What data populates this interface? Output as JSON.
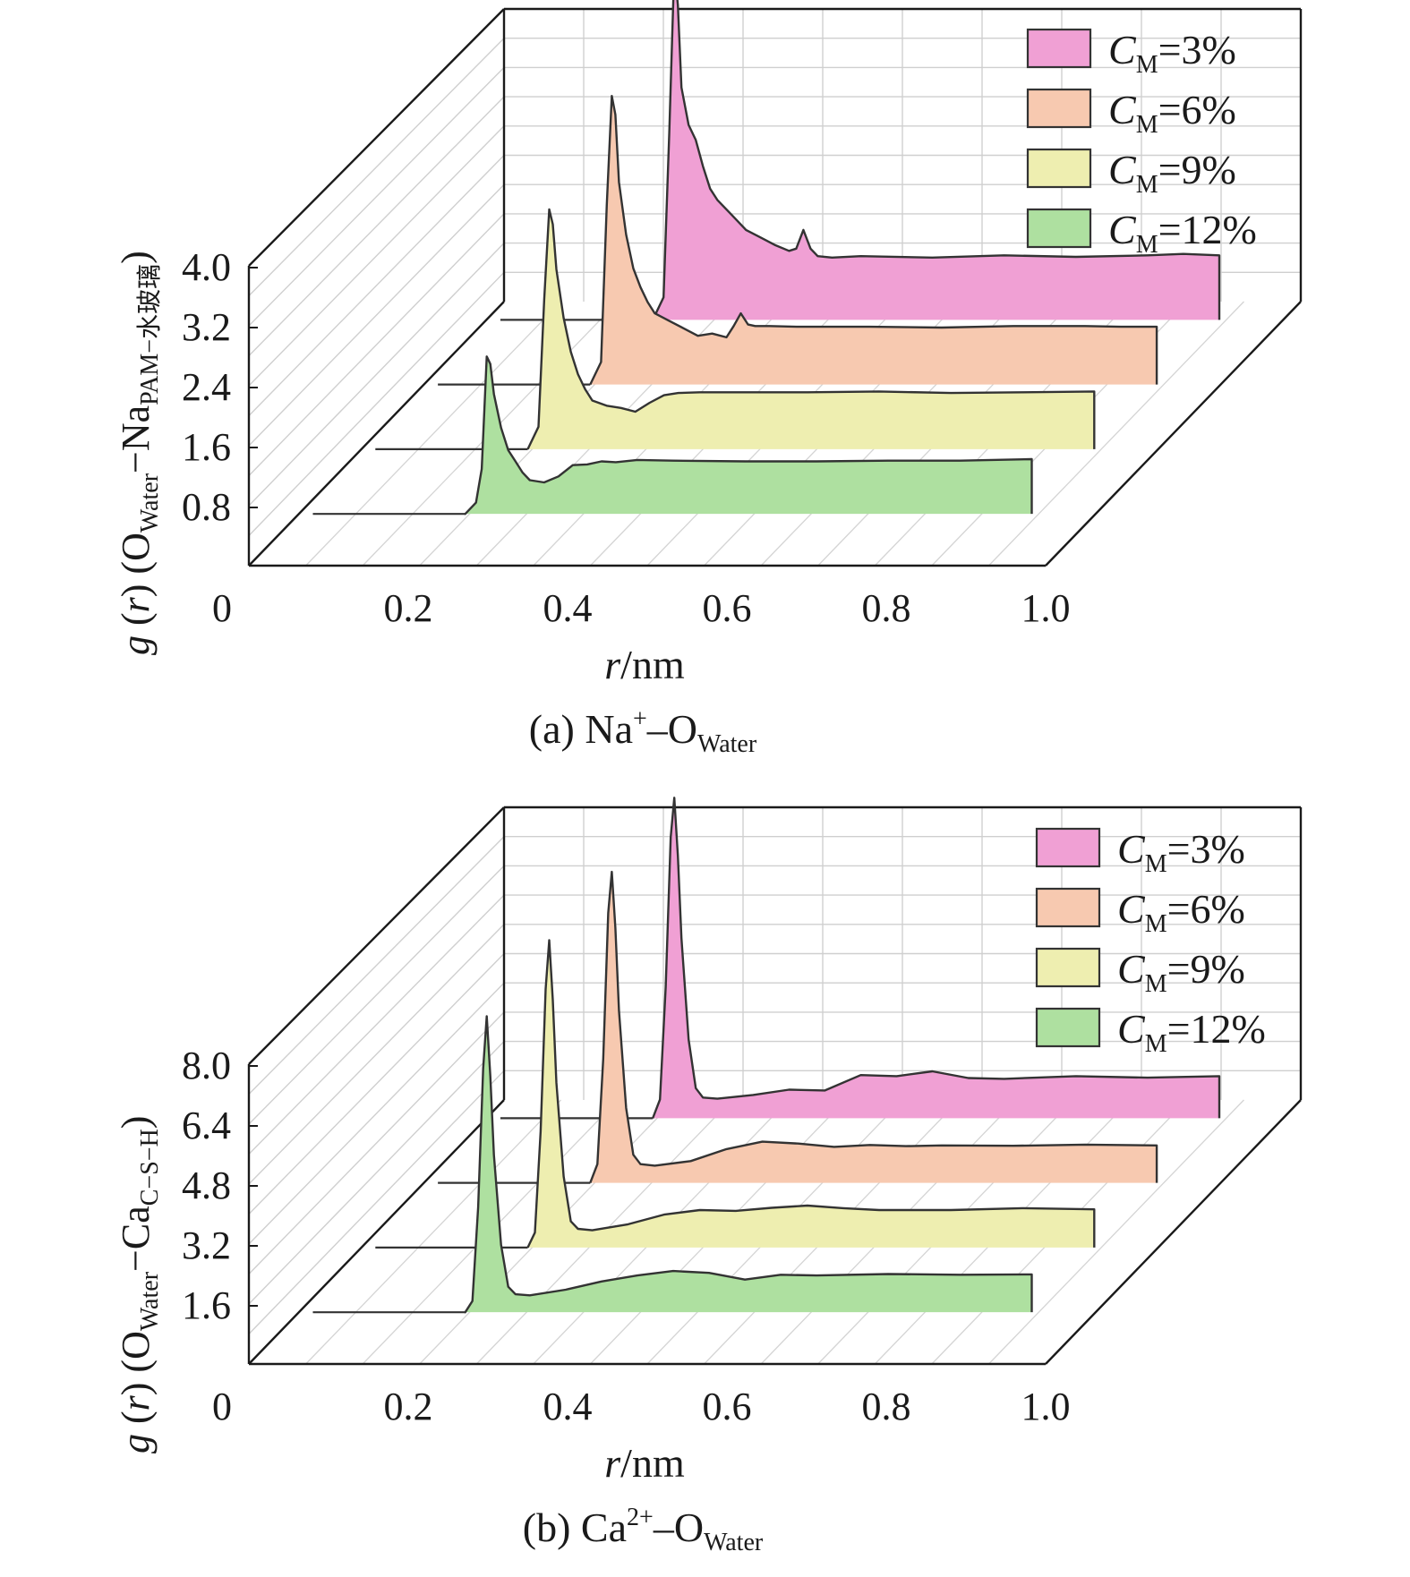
{
  "figure": {
    "panels": [
      {
        "caption": {
          "prefix": "(a) Na",
          "sup": "+",
          "dash": "–O",
          "sub": "Water"
        },
        "ylabel": {
          "g": "g",
          "r": "r",
          "open": " (",
          "o": "O",
          "sub1": "Water",
          "mid": "−Na",
          "sub2": "PAM−水玻璃",
          "close": ")"
        },
        "xlabel": {
          "r": "r",
          "unit": "/nm"
        },
        "ytick_labels": [
          "0.8",
          "1.6",
          "2.4",
          "3.2",
          "4.0"
        ],
        "xtick_labels": [
          "0",
          "0.2",
          "0.4",
          "0.6",
          "0.8",
          "1.0"
        ]
      },
      {
        "caption": {
          "prefix": "(b) Ca",
          "sup": "2+",
          "dash": "–O",
          "sub": "Water"
        },
        "ylabel": {
          "g": "g",
          "r": "r",
          "open": " (",
          "o": "O",
          "sub1": "Water",
          "mid": "−Ca",
          "sub2": "C−S−H",
          "close": ")"
        },
        "xlabel": {
          "r": "r",
          "unit": "/nm"
        },
        "ytick_labels": [
          "1.6",
          "3.2",
          "4.8",
          "6.4",
          "8.0"
        ],
        "xtick_labels": [
          "0",
          "0.2",
          "0.4",
          "0.6",
          "0.8",
          "1.0"
        ]
      }
    ],
    "legend": [
      {
        "c": "C",
        "sub": "M",
        "val": "=3%",
        "color": "#f0a0d4"
      },
      {
        "c": "C",
        "sub": "M",
        "val": "=6%",
        "color": "#f7c9b0"
      },
      {
        "c": "C",
        "sub": "M",
        "val": "=9%",
        "color": "#eeeeb0"
      },
      {
        "c": "C",
        "sub": "M",
        "val": "=12%",
        "color": "#aee0a0"
      }
    ]
  },
  "chart_data": [
    {
      "type": "area",
      "style": "3d-waterfall",
      "xlim": [
        0,
        1.0
      ],
      "ylim": [
        0,
        4.0
      ],
      "yticks": [
        0.8,
        1.6,
        2.4,
        3.2,
        4.0
      ],
      "xticks": [
        0,
        0.2,
        0.4,
        0.6,
        0.8,
        1.0
      ],
      "grid": true,
      "legend_position": "top-right",
      "series": [
        {
          "name": "C_M=3%",
          "color": "#f0a0d4",
          "x": [
            0.0,
            0.21,
            0.225,
            0.233,
            0.24,
            0.245,
            0.25,
            0.26,
            0.27,
            0.28,
            0.29,
            0.3,
            0.32,
            0.34,
            0.36,
            0.38,
            0.4,
            0.41,
            0.42,
            0.43,
            0.44,
            0.46,
            0.5,
            0.6,
            0.7,
            0.8,
            0.9,
            0.95,
            1.0
          ],
          "y": [
            0.0,
            0.0,
            0.3,
            2.5,
            4.7,
            4.2,
            3.1,
            2.6,
            2.4,
            2.05,
            1.75,
            1.6,
            1.4,
            1.2,
            1.1,
            1.0,
            0.92,
            0.95,
            1.2,
            0.95,
            0.85,
            0.83,
            0.85,
            0.83,
            0.86,
            0.84,
            0.86,
            0.88,
            0.86
          ]
        },
        {
          "name": "C_M=6%",
          "color": "#f7c9b0",
          "x": [
            0.0,
            0.21,
            0.225,
            0.233,
            0.24,
            0.245,
            0.25,
            0.26,
            0.27,
            0.28,
            0.29,
            0.3,
            0.32,
            0.34,
            0.36,
            0.38,
            0.4,
            0.41,
            0.42,
            0.43,
            0.44,
            0.46,
            0.5,
            0.6,
            0.7,
            0.8,
            0.9,
            0.95,
            1.0
          ],
          "y": [
            0.0,
            0.0,
            0.3,
            2.4,
            3.85,
            3.6,
            2.7,
            2.0,
            1.55,
            1.3,
            1.1,
            0.95,
            0.85,
            0.75,
            0.65,
            0.68,
            0.63,
            0.78,
            0.95,
            0.8,
            0.78,
            0.78,
            0.77,
            0.77,
            0.76,
            0.78,
            0.78,
            0.77,
            0.77
          ]
        },
        {
          "name": "C_M=9%",
          "color": "#eeeeb0",
          "x": [
            0.0,
            0.21,
            0.225,
            0.233,
            0.24,
            0.245,
            0.25,
            0.26,
            0.27,
            0.28,
            0.29,
            0.3,
            0.32,
            0.34,
            0.36,
            0.38,
            0.4,
            0.42,
            0.45,
            0.5,
            0.6,
            0.7,
            0.8,
            0.9,
            1.0
          ],
          "y": [
            0.0,
            0.0,
            0.3,
            2.0,
            3.2,
            3.0,
            2.4,
            1.75,
            1.3,
            1.0,
            0.8,
            0.65,
            0.58,
            0.55,
            0.5,
            0.62,
            0.72,
            0.75,
            0.76,
            0.76,
            0.76,
            0.77,
            0.75,
            0.76,
            0.77
          ]
        },
        {
          "name": "C_M=12%",
          "color": "#aee0a0",
          "x": [
            0.0,
            0.21,
            0.225,
            0.233,
            0.24,
            0.245,
            0.25,
            0.26,
            0.27,
            0.28,
            0.29,
            0.3,
            0.32,
            0.34,
            0.36,
            0.38,
            0.4,
            0.42,
            0.45,
            0.5,
            0.6,
            0.7,
            0.8,
            0.9,
            1.0
          ],
          "y": [
            0.0,
            0.0,
            0.15,
            0.6,
            2.1,
            2.0,
            1.6,
            1.15,
            0.85,
            0.7,
            0.55,
            0.45,
            0.42,
            0.5,
            0.65,
            0.66,
            0.7,
            0.69,
            0.72,
            0.71,
            0.7,
            0.7,
            0.71,
            0.71,
            0.73
          ]
        }
      ]
    },
    {
      "type": "area",
      "style": "3d-waterfall",
      "xlim": [
        0,
        1.0
      ],
      "ylim": [
        0,
        8.0
      ],
      "yticks": [
        1.6,
        3.2,
        4.8,
        6.4,
        8.0
      ],
      "xticks": [
        0,
        0.2,
        0.4,
        0.6,
        0.8,
        1.0
      ],
      "grid": true,
      "legend_position": "top-right",
      "series": [
        {
          "name": "C_M=3%",
          "color": "#f0a0d4",
          "x": [
            0.0,
            0.21,
            0.22,
            0.228,
            0.235,
            0.24,
            0.245,
            0.25,
            0.26,
            0.27,
            0.28,
            0.3,
            0.35,
            0.4,
            0.45,
            0.5,
            0.55,
            0.6,
            0.65,
            0.7,
            0.8,
            0.9,
            1.0
          ],
          "y": [
            0.0,
            0.0,
            0.5,
            3.5,
            7.5,
            8.55,
            7.0,
            4.8,
            2.1,
            0.8,
            0.55,
            0.52,
            0.62,
            0.76,
            0.74,
            1.15,
            1.12,
            1.25,
            1.07,
            1.05,
            1.12,
            1.08,
            1.12
          ]
        },
        {
          "name": "C_M=6%",
          "color": "#f7c9b0",
          "x": [
            0.0,
            0.21,
            0.22,
            0.228,
            0.235,
            0.24,
            0.245,
            0.25,
            0.26,
            0.27,
            0.28,
            0.3,
            0.35,
            0.4,
            0.45,
            0.5,
            0.55,
            0.6,
            0.65,
            0.7,
            0.8,
            0.9,
            1.0
          ],
          "y": [
            0.0,
            0.0,
            0.5,
            3.3,
            7.2,
            8.3,
            6.8,
            4.6,
            2.0,
            0.75,
            0.5,
            0.46,
            0.58,
            0.9,
            1.1,
            1.05,
            0.96,
            1.01,
            0.98,
            1.0,
            0.99,
            1.02,
            1.0
          ]
        },
        {
          "name": "C_M=9%",
          "color": "#eeeeb0",
          "x": [
            0.0,
            0.21,
            0.22,
            0.228,
            0.235,
            0.24,
            0.245,
            0.25,
            0.26,
            0.27,
            0.28,
            0.3,
            0.35,
            0.4,
            0.45,
            0.5,
            0.55,
            0.6,
            0.65,
            0.7,
            0.8,
            0.9,
            1.0
          ],
          "y": [
            0.0,
            0.0,
            0.4,
            3.1,
            6.9,
            8.2,
            6.6,
            4.4,
            1.9,
            0.7,
            0.5,
            0.46,
            0.62,
            0.88,
            1.0,
            0.98,
            1.06,
            1.12,
            1.05,
            1.0,
            1.0,
            1.05,
            1.02
          ]
        },
        {
          "name": "C_M=12%",
          "color": "#aee0a0",
          "x": [
            0.0,
            0.21,
            0.22,
            0.228,
            0.235,
            0.24,
            0.245,
            0.25,
            0.26,
            0.27,
            0.28,
            0.3,
            0.35,
            0.4,
            0.45,
            0.5,
            0.55,
            0.6,
            0.65,
            0.7,
            0.8,
            0.9,
            1.0
          ],
          "y": [
            0.0,
            0.0,
            0.3,
            2.8,
            6.5,
            7.9,
            6.3,
            4.2,
            1.8,
            0.68,
            0.48,
            0.45,
            0.6,
            0.82,
            0.98,
            1.1,
            1.05,
            0.87,
            1.0,
            0.98,
            1.02,
            1.0,
            1.01
          ]
        }
      ]
    }
  ]
}
